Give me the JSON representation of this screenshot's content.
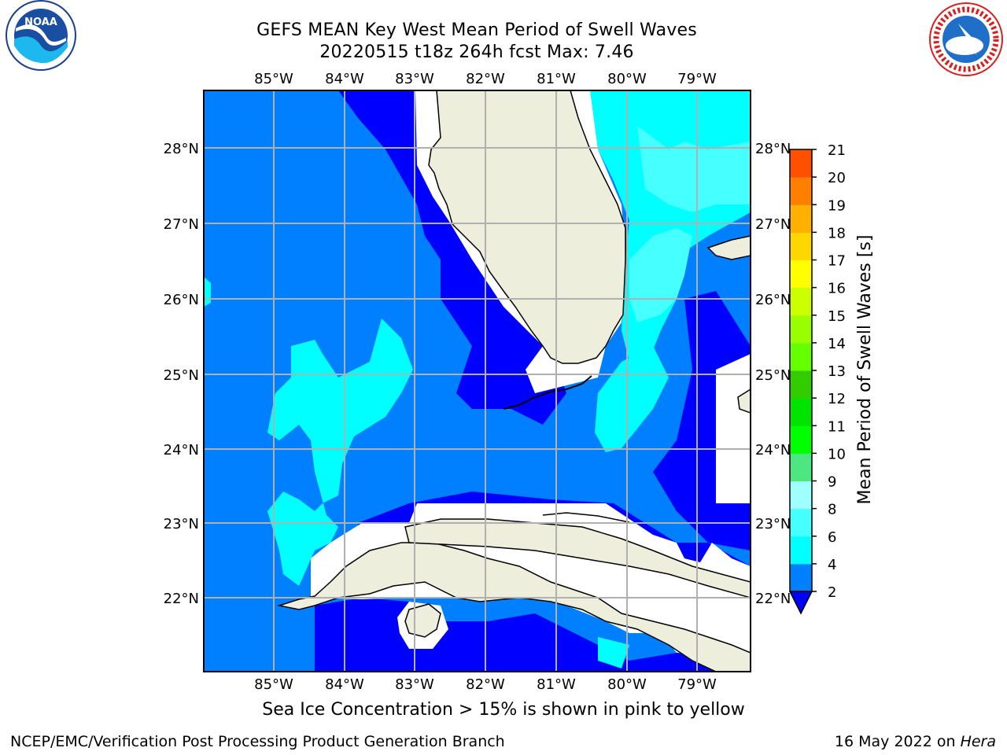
{
  "title": {
    "line1": "GEFS MEAN Key West Mean Period of Swell Waves",
    "line2": "20220515 t18z 264h fcst   Max: 7.46"
  },
  "logos": {
    "left": "noaa-logo",
    "right": "nws-logo"
  },
  "map": {
    "lon_labels": [
      "85°W",
      "84°W",
      "83°W",
      "82°W",
      "81°W",
      "80°W",
      "79°W"
    ],
    "lat_labels": [
      "28°N",
      "27°N",
      "26°N",
      "25°N",
      "24°N",
      "23°N",
      "22°N"
    ],
    "colors": {
      "band_2_4": "#0080ff",
      "band_under_2": "#0000ff",
      "band_4_6": "#00ffff",
      "band_6_8": "#46ffff",
      "land": "#eeeedc",
      "grid": "#b0b0b0"
    }
  },
  "colorbar": {
    "label": "Mean Period of Swell Waves [s]",
    "ticks": [
      "2",
      "4",
      "6",
      "8",
      "9",
      "10",
      "11",
      "12",
      "13",
      "14",
      "15",
      "16",
      "17",
      "18",
      "19",
      "20",
      "21"
    ],
    "colors": [
      "#0080ff",
      "#00ffff",
      "#46ffff",
      "#a0ffff",
      "#4de680",
      "#00ff00",
      "#00e400",
      "#33cc00",
      "#66ff00",
      "#99ff00",
      "#ccff00",
      "#ffff00",
      "#ffd700",
      "#ffb000",
      "#ff8000",
      "#ff5000",
      "#ff2000",
      "#ff0000"
    ]
  },
  "caption": "Sea Ice Concentration > 15% is shown in pink to yellow",
  "footer": {
    "left": "NCEP/EMC/Verification Post Processing Product Generation Branch",
    "date": "16 May 2022 on ",
    "machine": "Hera"
  }
}
